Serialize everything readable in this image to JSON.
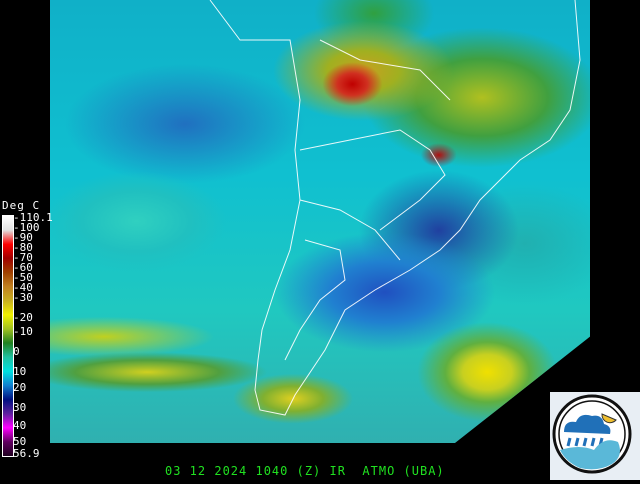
{
  "image": {
    "type": "satellite-infrared",
    "region": "South America"
  },
  "legend": {
    "title": "Deg C",
    "ticks": [
      "-110.1",
      "-100",
      "-90",
      "-80",
      "-70",
      "-60",
      "-50",
      "-40",
      "-30",
      "-20",
      "-10",
      "0",
      "10",
      "20",
      "30",
      "40",
      "50",
      "56.9"
    ],
    "colors": [
      "#ffffff",
      "#e0e0e0",
      "#ff0000",
      "#a00000",
      "#a04000",
      "#c08020",
      "#c8b020",
      "#f0f000",
      "#a0c020",
      "#208020",
      "#20c0a0",
      "#00e0e0",
      "#1080d0",
      "#001080",
      "#6020a0",
      "#ff00ff",
      "#600060",
      "#200020"
    ]
  },
  "caption": "03 12 2024 1040 (Z) IR  ATMO (UBA)",
  "logo": {
    "name": "ATMO UBA",
    "icon": "weather-cloud-rain-sun-wave-logo"
  }
}
